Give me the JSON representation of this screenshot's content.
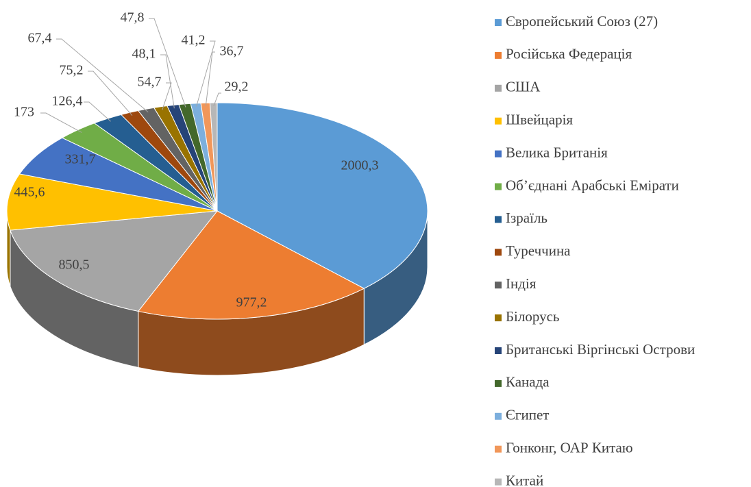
{
  "chart_data": {
    "type": "pie",
    "categories": [
      "Європейський Союз (27)",
      "Російська Федерація",
      "США",
      "Швейцарія",
      "Велика Британія",
      "Об’єднані Арабські Емірати",
      "Ізраїль",
      "Туреччина",
      "Індія",
      "Білорусь",
      "Британські Віргінські Острови",
      "Канада",
      "Єгипет",
      "Гонконг, ОАР Китаю",
      "Китай"
    ],
    "values": [
      2000.3,
      977.2,
      850.5,
      445.6,
      331.7,
      173,
      126.4,
      75.2,
      67.4,
      54.7,
      48.1,
      47.8,
      41.2,
      36.7,
      29.2
    ],
    "value_labels": [
      "2000,3",
      "977,2",
      "850,5",
      "445,6",
      "331,7",
      "173",
      "126,4",
      "75,2",
      "67,4",
      "54,7",
      "48,1",
      "47,8",
      "41,2",
      "36,7",
      "29,2"
    ],
    "colors": [
      "#5b9bd5",
      "#ed7d31",
      "#a5a5a5",
      "#ffc000",
      "#4472c4",
      "#70ad47",
      "#255e91",
      "#9e480e",
      "#636363",
      "#997300",
      "#264478",
      "#43682b",
      "#7cafdd",
      "#f1975a",
      "#b7b7b7"
    ],
    "legend": "right"
  }
}
